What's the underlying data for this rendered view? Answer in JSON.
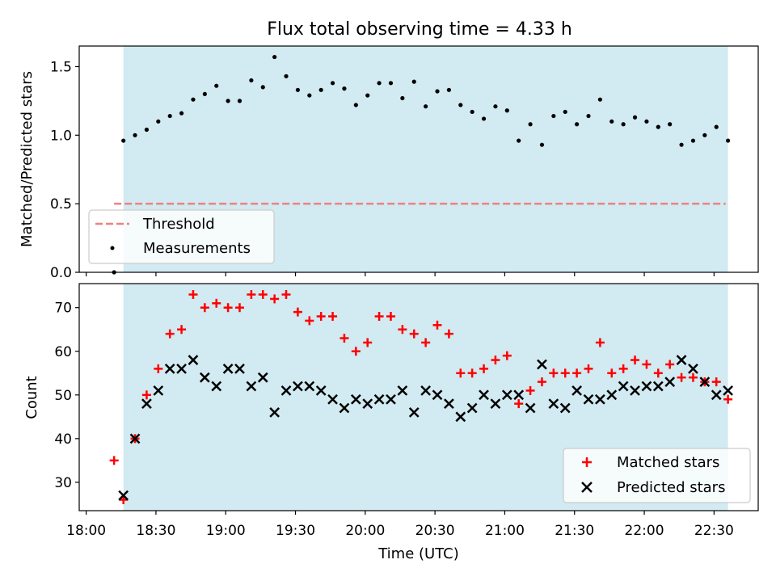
{
  "chart_data": [
    {
      "type": "scatter",
      "title": "Flux total observing time = 4.33 h",
      "xlabel": "",
      "ylabel": "Matched/Predicted stars",
      "ylim": [
        0,
        1.65
      ],
      "yticks": [
        0.0,
        0.5,
        1.0,
        1.5
      ],
      "ytick_labels": [
        "0.0",
        "0.5",
        "1.0",
        "1.5"
      ],
      "observing_window": {
        "start_min": 1096,
        "end_min": 1356,
        "color": "#add8e6"
      },
      "threshold": {
        "label": "Threshold",
        "value": 0.5,
        "color": "#f08080",
        "start_min": 1092,
        "end_min": 1355
      },
      "legend": [
        "Threshold",
        "Measurements"
      ],
      "legend_position": "lower-left",
      "series": [
        {
          "name": "Measurements",
          "marker": "dot",
          "color": "#000000",
          "x": [
            1092,
            1096,
            1101,
            1106,
            1111,
            1116,
            1121,
            1126,
            1131,
            1136,
            1141,
            1146,
            1151,
            1156,
            1161,
            1166,
            1171,
            1176,
            1181,
            1186,
            1191,
            1196,
            1201,
            1206,
            1211,
            1216,
            1221,
            1226,
            1231,
            1236,
            1241,
            1246,
            1251,
            1256,
            1261,
            1266,
            1271,
            1276,
            1281,
            1286,
            1291,
            1296,
            1301,
            1306,
            1311,
            1316,
            1321,
            1326,
            1331,
            1336,
            1341,
            1346,
            1351,
            1356
          ],
          "y": [
            0.0,
            0.96,
            1.0,
            1.04,
            1.1,
            1.14,
            1.16,
            1.26,
            1.3,
            1.36,
            1.25,
            1.25,
            1.4,
            1.35,
            1.57,
            1.43,
            1.33,
            1.29,
            1.33,
            1.38,
            1.34,
            1.22,
            1.29,
            1.38,
            1.38,
            1.27,
            1.39,
            1.21,
            1.32,
            1.33,
            1.22,
            1.17,
            1.12,
            1.21,
            1.18,
            0.96,
            1.08,
            0.93,
            1.14,
            1.17,
            1.08,
            1.14,
            1.26,
            1.1,
            1.08,
            1.13,
            1.1,
            1.06,
            1.08,
            0.93,
            0.96,
            1.0,
            1.06,
            0.96
          ]
        }
      ]
    },
    {
      "type": "scatter",
      "title": "",
      "xlabel": "Time (UTC)",
      "ylabel": "Count",
      "ylim": [
        23.5,
        75.5
      ],
      "yticks": [
        30,
        40,
        50,
        60,
        70
      ],
      "ytick_labels": [
        "30",
        "40",
        "50",
        "60",
        "70"
      ],
      "xlim_min": [
        1077,
        1369
      ],
      "xticks_min": [
        1080,
        1110,
        1140,
        1170,
        1200,
        1230,
        1260,
        1290,
        1320,
        1350
      ],
      "xtick_labels": [
        "18:00",
        "18:30",
        "19:00",
        "19:30",
        "20:00",
        "20:30",
        "21:00",
        "21:30",
        "22:00",
        "22:30"
      ],
      "legend": [
        "Matched stars",
        "Predicted stars"
      ],
      "legend_position": "lower-right",
      "series": [
        {
          "name": "Matched stars",
          "marker": "plus",
          "color": "#ff0000",
          "x": [
            1092,
            1096,
            1101,
            1106,
            1111,
            1116,
            1121,
            1126,
            1131,
            1136,
            1141,
            1146,
            1151,
            1156,
            1161,
            1166,
            1171,
            1176,
            1181,
            1186,
            1191,
            1196,
            1201,
            1206,
            1211,
            1216,
            1221,
            1226,
            1231,
            1236,
            1241,
            1246,
            1251,
            1256,
            1261,
            1266,
            1271,
            1276,
            1281,
            1286,
            1291,
            1296,
            1301,
            1306,
            1311,
            1316,
            1321,
            1326,
            1331,
            1336,
            1341,
            1346,
            1351,
            1356
          ],
          "y": [
            35,
            26,
            40,
            50,
            56,
            64,
            65,
            73,
            70,
            71,
            70,
            70,
            73,
            73,
            72,
            73,
            69,
            67,
            68,
            68,
            63,
            60,
            62,
            68,
            68,
            65,
            64,
            62,
            66,
            64,
            55,
            55,
            56,
            58,
            59,
            48,
            51,
            53,
            55,
            55,
            55,
            56,
            62,
            55,
            56,
            58,
            57,
            55,
            57,
            54,
            54,
            53,
            53,
            49
          ]
        },
        {
          "name": "Predicted stars",
          "marker": "x",
          "color": "#000000",
          "x": [
            1096,
            1101,
            1106,
            1111,
            1116,
            1121,
            1126,
            1131,
            1136,
            1141,
            1146,
            1151,
            1156,
            1161,
            1166,
            1171,
            1176,
            1181,
            1186,
            1191,
            1196,
            1201,
            1206,
            1211,
            1216,
            1221,
            1226,
            1231,
            1236,
            1241,
            1246,
            1251,
            1256,
            1261,
            1266,
            1271,
            1276,
            1281,
            1286,
            1291,
            1296,
            1301,
            1306,
            1311,
            1316,
            1321,
            1326,
            1331,
            1336,
            1341,
            1346,
            1351,
            1356
          ],
          "y": [
            27,
            40,
            48,
            51,
            56,
            56,
            58,
            54,
            52,
            56,
            56,
            52,
            54,
            46,
            51,
            52,
            52,
            51,
            49,
            47,
            49,
            48,
            49,
            49,
            51,
            46,
            51,
            50,
            48,
            45,
            47,
            50,
            48,
            50,
            50,
            47,
            57,
            48,
            47,
            51,
            49,
            49,
            50,
            52,
            51,
            52,
            52,
            53,
            58,
            56,
            53,
            50,
            51
          ]
        }
      ]
    }
  ]
}
